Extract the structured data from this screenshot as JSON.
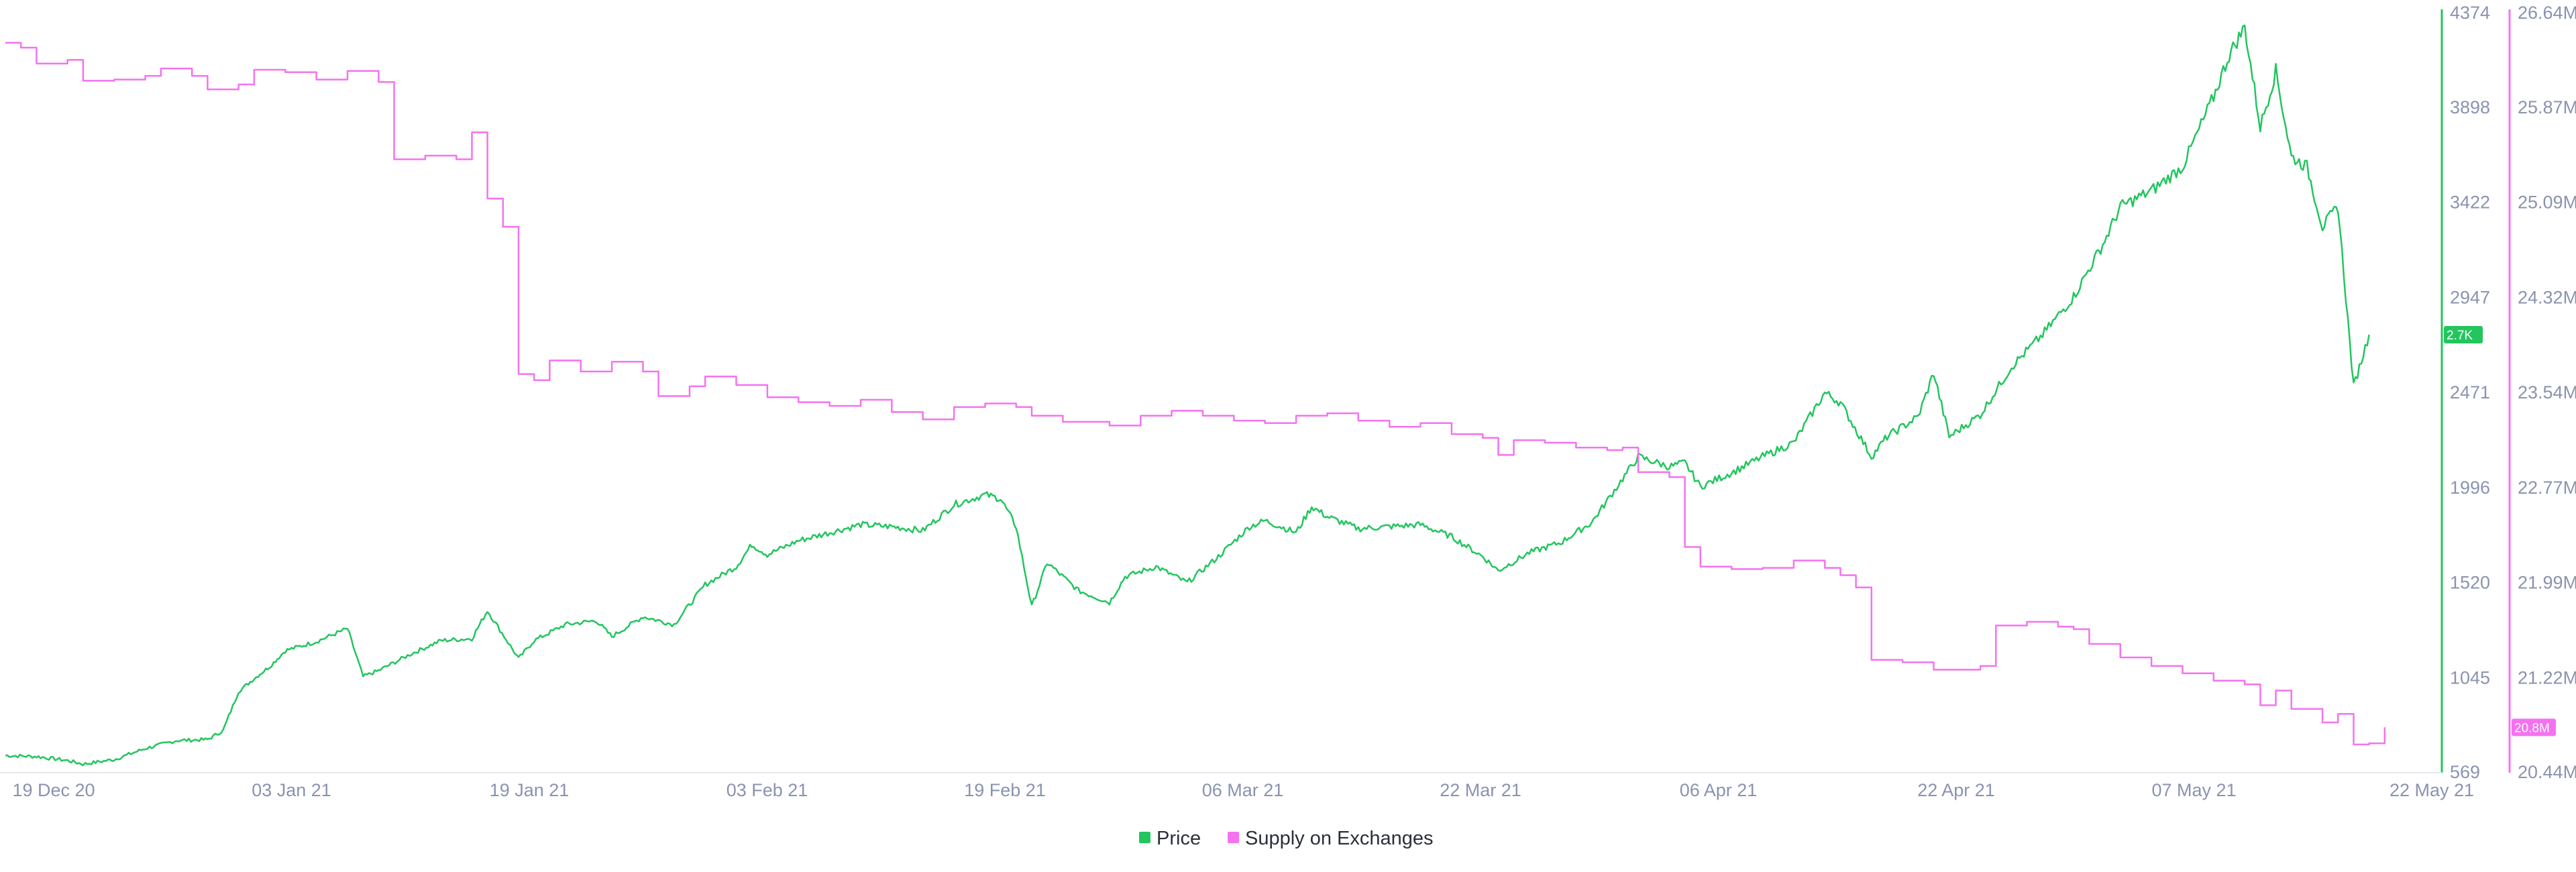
{
  "chart_data": {
    "type": "line",
    "x_tick_labels": [
      "19 Dec 20",
      "03 Jan 21",
      "19 Jan 21",
      "03 Feb 21",
      "19 Feb 21",
      "06 Mar 21",
      "22 Mar 21",
      "06 Apr 21",
      "22 Apr 21",
      "07 May 21",
      "22 May 21"
    ],
    "x_range": [
      "2020-12-19",
      "2021-05-22"
    ],
    "grid": false,
    "legend_position": "bottom-center",
    "y_axes": [
      {
        "side": "right-inner",
        "series": "Price",
        "ylim": [
          569,
          4374
        ],
        "tick_labels": [
          "569",
          "1045",
          "1520",
          "1996",
          "2471",
          "2947",
          "3422",
          "3898",
          "4374"
        ]
      },
      {
        "side": "right-outer",
        "series": "Supply on Exchanges",
        "ylim": [
          20.44,
          26.64
        ],
        "unit": "M",
        "tick_labels": [
          "20.44M",
          "21.22M",
          "21.99M",
          "22.77M",
          "23.54M",
          "24.32M",
          "25.09M",
          "25.87M",
          "26.64M"
        ]
      }
    ],
    "series": [
      {
        "name": "Price",
        "color": "#22c55e",
        "current_label": "2.7K",
        "points": [
          [
            "2020-12-19",
            655
          ],
          [
            "2020-12-21",
            650
          ],
          [
            "2020-12-23",
            630
          ],
          [
            "2020-12-24",
            612
          ],
          [
            "2020-12-26",
            635
          ],
          [
            "2020-12-28",
            690
          ],
          [
            "2020-12-30",
            730
          ],
          [
            "2021-01-01",
            735
          ],
          [
            "2021-01-02",
            780
          ],
          [
            "2021-01-03",
            975
          ],
          [
            "2021-01-04",
            1040
          ],
          [
            "2021-01-05",
            1100
          ],
          [
            "2021-01-06",
            1180
          ],
          [
            "2021-01-08",
            1225
          ],
          [
            "2021-01-10",
            1290
          ],
          [
            "2021-01-11",
            1050
          ],
          [
            "2021-01-12",
            1080
          ],
          [
            "2021-01-14",
            1160
          ],
          [
            "2021-01-16",
            1230
          ],
          [
            "2021-01-18",
            1240
          ],
          [
            "2021-01-19",
            1380
          ],
          [
            "2021-01-21",
            1140
          ],
          [
            "2021-01-22",
            1230
          ],
          [
            "2021-01-24",
            1310
          ],
          [
            "2021-01-26",
            1330
          ],
          [
            "2021-01-27",
            1250
          ],
          [
            "2021-01-29",
            1350
          ],
          [
            "2021-01-31",
            1310
          ],
          [
            "2021-02-02",
            1510
          ],
          [
            "2021-02-04",
            1600
          ],
          [
            "2021-02-05",
            1710
          ],
          [
            "2021-02-06",
            1660
          ],
          [
            "2021-02-08",
            1730
          ],
          [
            "2021-02-10",
            1770
          ],
          [
            "2021-02-12",
            1810
          ],
          [
            "2021-02-14",
            1800
          ],
          [
            "2021-02-16",
            1780
          ],
          [
            "2021-02-18",
            1910
          ],
          [
            "2021-02-20",
            1960
          ],
          [
            "2021-02-21",
            1940
          ],
          [
            "2021-02-22",
            1800
          ],
          [
            "2021-02-23",
            1400
          ],
          [
            "2021-02-24",
            1620
          ],
          [
            "2021-02-26",
            1480
          ],
          [
            "2021-02-28",
            1420
          ],
          [
            "2021-03-01",
            1550
          ],
          [
            "2021-03-03",
            1600
          ],
          [
            "2021-03-05",
            1520
          ],
          [
            "2021-03-07",
            1650
          ],
          [
            "2021-03-09",
            1800
          ],
          [
            "2021-03-10",
            1830
          ],
          [
            "2021-03-12",
            1770
          ],
          [
            "2021-03-13",
            1900
          ],
          [
            "2021-03-14",
            1850
          ],
          [
            "2021-03-16",
            1790
          ],
          [
            "2021-03-18",
            1800
          ],
          [
            "2021-03-20",
            1810
          ],
          [
            "2021-03-22",
            1750
          ],
          [
            "2021-03-24",
            1650
          ],
          [
            "2021-03-25",
            1580
          ],
          [
            "2021-03-27",
            1670
          ],
          [
            "2021-03-29",
            1720
          ],
          [
            "2021-03-31",
            1820
          ],
          [
            "2021-04-02",
            2040
          ],
          [
            "2021-04-03",
            2150
          ],
          [
            "2021-04-05",
            2100
          ],
          [
            "2021-04-06",
            2120
          ],
          [
            "2021-04-07",
            2000
          ],
          [
            "2021-04-09",
            2070
          ],
          [
            "2021-04-11",
            2150
          ],
          [
            "2021-04-13",
            2220
          ],
          [
            "2021-04-15",
            2470
          ],
          [
            "2021-04-16",
            2420
          ],
          [
            "2021-04-18",
            2150
          ],
          [
            "2021-04-19",
            2250
          ],
          [
            "2021-04-21",
            2350
          ],
          [
            "2021-04-22",
            2570
          ],
          [
            "2021-04-23",
            2250
          ],
          [
            "2021-04-25",
            2360
          ],
          [
            "2021-04-27",
            2600
          ],
          [
            "2021-04-29",
            2760
          ],
          [
            "2021-05-01",
            2950
          ],
          [
            "2021-05-03",
            3230
          ],
          [
            "2021-05-04",
            3400
          ],
          [
            "2021-05-06",
            3480
          ],
          [
            "2021-05-08",
            3600
          ],
          [
            "2021-05-10",
            3950
          ],
          [
            "2021-05-11",
            4160
          ],
          [
            "2021-05-12",
            4300
          ],
          [
            "2021-05-13",
            3800
          ],
          [
            "2021-05-14",
            4080
          ],
          [
            "2021-05-15",
            3650
          ],
          [
            "2021-05-16",
            3600
          ],
          [
            "2021-05-17",
            3300
          ],
          [
            "2021-05-18",
            3400
          ],
          [
            "2021-05-19",
            2500
          ],
          [
            "2021-05-20",
            2760
          ]
        ]
      },
      {
        "name": "Supply on Exchanges",
        "color": "#f472f0",
        "current_label": "20.8M",
        "points": [
          [
            "2020-12-19",
            26.39
          ],
          [
            "2020-12-20",
            26.35
          ],
          [
            "2020-12-21",
            26.22
          ],
          [
            "2020-12-23",
            26.25
          ],
          [
            "2020-12-24",
            26.08
          ],
          [
            "2020-12-26",
            26.09
          ],
          [
            "2020-12-28",
            26.12
          ],
          [
            "2020-12-29",
            26.18
          ],
          [
            "2020-12-31",
            26.12
          ],
          [
            "2021-01-01",
            26.01
          ],
          [
            "2021-01-03",
            26.05
          ],
          [
            "2021-01-04",
            26.17
          ],
          [
            "2021-01-06",
            26.15
          ],
          [
            "2021-01-08",
            26.09
          ],
          [
            "2021-01-10",
            26.16
          ],
          [
            "2021-01-12",
            26.07
          ],
          [
            "2021-01-13",
            25.44
          ],
          [
            "2021-01-15",
            25.47
          ],
          [
            "2021-01-17",
            25.44
          ],
          [
            "2021-01-18",
            25.66
          ],
          [
            "2021-01-19",
            25.12
          ],
          [
            "2021-01-20",
            24.89
          ],
          [
            "2021-01-21",
            23.69
          ],
          [
            "2021-01-22",
            23.64
          ],
          [
            "2021-01-23",
            23.8
          ],
          [
            "2021-01-25",
            23.71
          ],
          [
            "2021-01-27",
            23.79
          ],
          [
            "2021-01-29",
            23.71
          ],
          [
            "2021-01-30",
            23.51
          ],
          [
            "2021-02-01",
            23.59
          ],
          [
            "2021-02-02",
            23.67
          ],
          [
            "2021-02-04",
            23.6
          ],
          [
            "2021-02-06",
            23.5
          ],
          [
            "2021-02-08",
            23.46
          ],
          [
            "2021-02-10",
            23.43
          ],
          [
            "2021-02-12",
            23.48
          ],
          [
            "2021-02-14",
            23.38
          ],
          [
            "2021-02-16",
            23.32
          ],
          [
            "2021-02-18",
            23.42
          ],
          [
            "2021-02-20",
            23.45
          ],
          [
            "2021-02-22",
            23.42
          ],
          [
            "2021-02-23",
            23.35
          ],
          [
            "2021-02-25",
            23.3
          ],
          [
            "2021-02-28",
            23.27
          ],
          [
            "2021-03-02",
            23.35
          ],
          [
            "2021-03-04",
            23.39
          ],
          [
            "2021-03-06",
            23.35
          ],
          [
            "2021-03-08",
            23.31
          ],
          [
            "2021-03-10",
            23.29
          ],
          [
            "2021-03-12",
            23.35
          ],
          [
            "2021-03-14",
            23.37
          ],
          [
            "2021-03-16",
            23.31
          ],
          [
            "2021-03-18",
            23.26
          ],
          [
            "2021-03-20",
            23.29
          ],
          [
            "2021-03-22",
            23.2
          ],
          [
            "2021-03-24",
            23.17
          ],
          [
            "2021-03-25",
            23.03
          ],
          [
            "2021-03-26",
            23.15
          ],
          [
            "2021-03-28",
            23.13
          ],
          [
            "2021-03-30",
            23.09
          ],
          [
            "2021-04-01",
            23.07
          ],
          [
            "2021-04-02",
            23.09
          ],
          [
            "2021-04-03",
            22.89
          ],
          [
            "2021-04-05",
            22.85
          ],
          [
            "2021-04-06",
            22.28
          ],
          [
            "2021-04-07",
            22.12
          ],
          [
            "2021-04-09",
            22.1
          ],
          [
            "2021-04-11",
            22.11
          ],
          [
            "2021-04-13",
            22.17
          ],
          [
            "2021-04-15",
            22.11
          ],
          [
            "2021-04-16",
            22.05
          ],
          [
            "2021-04-17",
            21.95
          ],
          [
            "2021-04-18",
            21.36
          ],
          [
            "2021-04-20",
            21.34
          ],
          [
            "2021-04-22",
            21.28
          ],
          [
            "2021-04-25",
            21.31
          ],
          [
            "2021-04-26",
            21.64
          ],
          [
            "2021-04-28",
            21.67
          ],
          [
            "2021-04-30",
            21.63
          ],
          [
            "2021-05-01",
            21.61
          ],
          [
            "2021-05-02",
            21.49
          ],
          [
            "2021-05-04",
            21.38
          ],
          [
            "2021-05-06",
            21.31
          ],
          [
            "2021-05-08",
            21.25
          ],
          [
            "2021-05-10",
            21.19
          ],
          [
            "2021-05-12",
            21.16
          ],
          [
            "2021-05-13",
            20.99
          ],
          [
            "2021-05-14",
            21.11
          ],
          [
            "2021-05-15",
            20.96
          ],
          [
            "2021-05-17",
            20.85
          ],
          [
            "2021-05-18",
            20.92
          ],
          [
            "2021-05-19",
            20.67
          ],
          [
            "2021-05-20",
            20.68
          ],
          [
            "2021-05-21",
            20.81
          ]
        ]
      }
    ]
  }
}
